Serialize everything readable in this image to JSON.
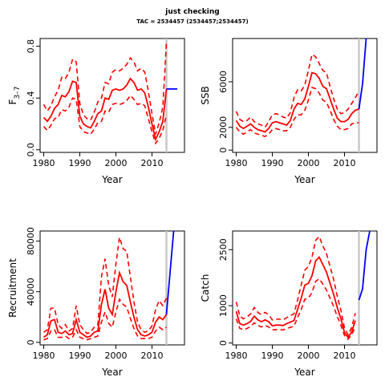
{
  "title": "just checking",
  "subtitle": "TAC = 2534457 (2534457;2534457)",
  "colors": {
    "estimate": "#ff0000",
    "forecast": "#0000ff",
    "marker": "#c8c8c8",
    "axis": "#000000"
  },
  "chart_data": [
    {
      "type": "line",
      "panel": "F",
      "ylabel_main": "F",
      "ylabel_sub": "3–7",
      "xlabel": "Year",
      "xlim": [
        1979,
        2019
      ],
      "ylim": [
        -0.02,
        0.86
      ],
      "xticks": [
        1980,
        1990,
        2000,
        2010
      ],
      "yticks": [
        0.0,
        0.4,
        0.8
      ],
      "ytick_labels": [
        "0.0",
        "0.4",
        "0.8"
      ],
      "marker_year": 2014,
      "x": [
        1980,
        1981,
        1982,
        1983,
        1984,
        1985,
        1986,
        1987,
        1988,
        1989,
        1990,
        1991,
        1992,
        1993,
        1994,
        1995,
        1996,
        1997,
        1998,
        1999,
        2000,
        2001,
        2002,
        2003,
        2004,
        2005,
        2006,
        2007,
        2008,
        2009,
        2010,
        2011,
        2012,
        2013,
        2014
      ],
      "series": [
        {
          "role": "estimate",
          "values": [
            0.25,
            0.22,
            0.26,
            0.32,
            0.35,
            0.42,
            0.41,
            0.45,
            0.53,
            0.52,
            0.26,
            0.2,
            0.18,
            0.17,
            0.22,
            0.28,
            0.3,
            0.4,
            0.39,
            0.46,
            0.47,
            0.46,
            0.47,
            0.5,
            0.55,
            0.52,
            0.46,
            0.47,
            0.44,
            0.33,
            0.2,
            0.08,
            0.14,
            0.22,
            0.47
          ]
        },
        {
          "role": "upper",
          "values": [
            0.35,
            0.3,
            0.34,
            0.41,
            0.46,
            0.56,
            0.55,
            0.6,
            0.7,
            0.68,
            0.36,
            0.27,
            0.24,
            0.23,
            0.29,
            0.37,
            0.4,
            0.52,
            0.51,
            0.6,
            0.62,
            0.61,
            0.63,
            0.66,
            0.71,
            0.68,
            0.61,
            0.63,
            0.6,
            0.45,
            0.28,
            0.12,
            0.21,
            0.33,
            0.83
          ]
        },
        {
          "role": "lower",
          "values": [
            0.18,
            0.15,
            0.19,
            0.24,
            0.25,
            0.31,
            0.3,
            0.33,
            0.4,
            0.39,
            0.18,
            0.14,
            0.13,
            0.12,
            0.16,
            0.21,
            0.22,
            0.3,
            0.29,
            0.35,
            0.36,
            0.35,
            0.36,
            0.38,
            0.42,
            0.39,
            0.35,
            0.36,
            0.34,
            0.24,
            0.14,
            0.05,
            0.09,
            0.15,
            0.27
          ]
        }
      ],
      "forecast": {
        "x": [
          2014,
          2015,
          2016,
          2017
        ],
        "values": [
          0.47,
          0.47,
          0.47,
          0.47
        ]
      }
    },
    {
      "type": "line",
      "panel": "SSB",
      "ylabel_main": "SSB",
      "ylabel_sub": "",
      "xlabel": "Year",
      "xlim": [
        1979,
        2019
      ],
      "ylim": [
        -200,
        9800
      ],
      "xticks": [
        1980,
        1990,
        2000,
        2010
      ],
      "yticks": [
        0,
        2000,
        6000
      ],
      "ytick_labels": [
        "0",
        "2000",
        "6000"
      ],
      "marker_year": 2014,
      "x": [
        1980,
        1981,
        1982,
        1983,
        1984,
        1985,
        1986,
        1987,
        1988,
        1989,
        1990,
        1991,
        1992,
        1993,
        1994,
        1995,
        1996,
        1997,
        1998,
        1999,
        2000,
        2001,
        2002,
        2003,
        2004,
        2005,
        2006,
        2007,
        2008,
        2009,
        2010,
        2011,
        2012,
        2013,
        2014
      ],
      "series": [
        {
          "role": "estimate",
          "values": [
            2600,
            2100,
            1900,
            2100,
            2300,
            2000,
            1800,
            1700,
            1600,
            1900,
            2400,
            2500,
            2400,
            2300,
            2200,
            2600,
            3600,
            4100,
            4000,
            4500,
            5600,
            6800,
            6700,
            6300,
            5600,
            5400,
            4500,
            3600,
            2800,
            2500,
            2500,
            2700,
            3200,
            3500,
            3600
          ]
        },
        {
          "role": "upper",
          "values": [
            3400,
            2700,
            2500,
            2600,
            2900,
            2500,
            2300,
            2200,
            2000,
            2500,
            3100,
            3200,
            3100,
            2900,
            2800,
            3300,
            4600,
            5300,
            5200,
            5700,
            7000,
            8400,
            8200,
            7600,
            7000,
            6800,
            5600,
            4500,
            3600,
            3200,
            3300,
            3600,
            4100,
            4600,
            5200
          ]
        },
        {
          "role": "lower",
          "values": [
            2000,
            1600,
            1400,
            1600,
            1800,
            1500,
            1400,
            1300,
            1200,
            1400,
            1800,
            1900,
            1800,
            1700,
            1700,
            2000,
            2700,
            3100,
            3100,
            3500,
            4400,
            5500,
            5400,
            5000,
            4400,
            4200,
            3500,
            2700,
            2100,
            1800,
            1800,
            1900,
            2300,
            2400,
            2400
          ]
        }
      ],
      "forecast": {
        "x": [
          2014,
          2015,
          2016
        ],
        "values": [
          3600,
          5800,
          9800
        ]
      }
    },
    {
      "type": "line",
      "panel": "Recruitment",
      "ylabel_main": "Recruitment",
      "ylabel_sub": "",
      "xlabel": "Year",
      "xlim": [
        1979,
        2019
      ],
      "ylim": [
        -2000,
        88000
      ],
      "xticks": [
        1980,
        1990,
        2000,
        2010
      ],
      "yticks": [
        0,
        40000,
        80000
      ],
      "ytick_labels": [
        "0",
        "40000",
        "80000"
      ],
      "marker_year": 2014,
      "x": [
        1980,
        1981,
        1982,
        1983,
        1984,
        1985,
        1986,
        1987,
        1988,
        1989,
        1990,
        1991,
        1992,
        1993,
        1994,
        1995,
        1996,
        1997,
        1998,
        1999,
        2000,
        2001,
        2002,
        2003,
        2004,
        2005,
        2006,
        2007,
        2008,
        2009,
        2010,
        2011,
        2012,
        2013,
        2014
      ],
      "series": [
        {
          "role": "estimate",
          "values": [
            4000,
            6000,
            17000,
            18000,
            8000,
            7000,
            9000,
            6000,
            7000,
            18000,
            8000,
            6000,
            4000,
            5000,
            8000,
            9000,
            30000,
            42000,
            27000,
            22000,
            40000,
            55000,
            48000,
            45000,
            32000,
            20000,
            10000,
            6000,
            5000,
            6000,
            8000,
            16000,
            20000,
            18000,
            22000
          ]
        },
        {
          "role": "upper",
          "values": [
            8000,
            10000,
            27000,
            27000,
            14000,
            11000,
            14000,
            9000,
            11000,
            29000,
            14000,
            10000,
            7000,
            8000,
            12000,
            14000,
            52000,
            66000,
            45000,
            36000,
            62000,
            83000,
            74000,
            72000,
            52000,
            32000,
            16000,
            10000,
            8000,
            9000,
            13000,
            26000,
            33000,
            29000,
            35000
          ]
        },
        {
          "role": "lower",
          "values": [
            2000,
            3000,
            9000,
            10000,
            4000,
            4000,
            5000,
            3000,
            4000,
            10000,
            4000,
            3000,
            2000,
            3000,
            4000,
            5000,
            16000,
            24000,
            15000,
            12000,
            24000,
            34000,
            30000,
            28000,
            19000,
            11000,
            5000,
            3000,
            3000,
            3000,
            4000,
            9000,
            12000,
            10000,
            12000
          ]
        }
      ],
      "forecast": {
        "x": [
          2014,
          2015,
          2016
        ],
        "values": [
          22000,
          55000,
          88000
        ]
      }
    },
    {
      "type": "line",
      "panel": "Catch",
      "ylabel_main": "Catch",
      "ylabel_sub": "",
      "xlabel": "Year",
      "xlim": [
        1979,
        2019
      ],
      "ylim": [
        -50,
        3000
      ],
      "xticks": [
        1980,
        1990,
        2000,
        2010
      ],
      "yticks": [
        0,
        1000,
        2500
      ],
      "ytick_labels": [
        "0",
        "1000",
        "2500"
      ],
      "marker_year": 2014,
      "x": [
        1980,
        1981,
        1982,
        1983,
        1984,
        1985,
        1986,
        1987,
        1988,
        1989,
        1990,
        1991,
        1992,
        1993,
        1994,
        1995,
        1996,
        1997,
        1998,
        1999,
        2000,
        2001,
        2002,
        2003,
        2004,
        2005,
        2006,
        2007,
        2008,
        2009,
        2010,
        2011,
        2012,
        2013
      ],
      "series": [
        {
          "role": "estimate",
          "values": [
            850,
            520,
            480,
            520,
            580,
            720,
            620,
            570,
            620,
            570,
            460,
            480,
            480,
            470,
            520,
            560,
            600,
            900,
            1200,
            1550,
            1600,
            1800,
            2200,
            2300,
            2100,
            1900,
            1600,
            1300,
            950,
            650,
            280,
            150,
            300,
            600
          ]
        },
        {
          "role": "upper",
          "values": [
            1100,
            720,
            650,
            700,
            780,
            950,
            820,
            760,
            820,
            760,
            620,
            640,
            640,
            620,
            680,
            730,
            780,
            1150,
            1550,
            1950,
            2050,
            2300,
            2750,
            2850,
            2600,
            2400,
            2050,
            1700,
            1250,
            880,
            400,
            220,
            420,
            800
          ]
        },
        {
          "role": "lower",
          "values": [
            650,
            390,
            360,
            390,
            440,
            540,
            470,
            430,
            470,
            430,
            350,
            360,
            360,
            350,
            390,
            420,
            450,
            680,
            900,
            1170,
            1200,
            1350,
            1650,
            1720,
            1580,
            1420,
            1200,
            980,
            710,
            480,
            200,
            100,
            220,
            450
          ]
        }
      ],
      "forecast": {
        "x": [
          2014,
          2015,
          2016,
          2017
        ],
        "values": [
          1150,
          1450,
          2500,
          3000
        ]
      }
    }
  ]
}
